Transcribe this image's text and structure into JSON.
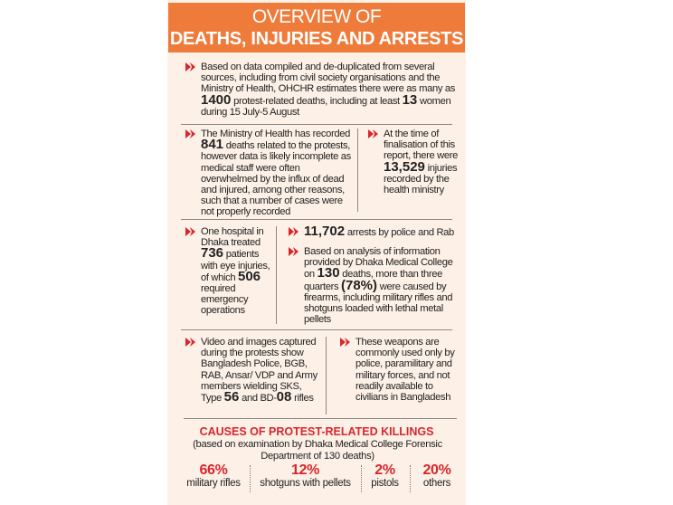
{
  "header": {
    "line1": "OVERVIEW OF",
    "line2": "DEATHS, INJURIES AND ARRESTS"
  },
  "block1": {
    "t1": "Based on data compiled and de-duplicated from several sources, including from civil society organisations and the Ministry of Health, OHCHR estimates there were as many as ",
    "n1": "1400",
    "t2": " protest-related deaths, including at least ",
    "n2": "13",
    "t3": " women during 15 July-5 August"
  },
  "block2": {
    "t1": "The Ministry of Health has recorded ",
    "n1": "841",
    "t2": " deaths related to the protests, however data is likely incomplete as medical staff were often overwhelmed by the influx of dead and injured, among other reasons, such that a number of cases were not properly recorded"
  },
  "block3": {
    "t1": "At the time of finalisation of this report, there were ",
    "n1": "13,529",
    "t2": " injuries recorded by the health ministry"
  },
  "block4": {
    "t1": "One hospital in Dhaka treated ",
    "n1": "736",
    "t2": " patients with eye injuries, of which ",
    "n2": "506",
    "t3": " required emergency operations"
  },
  "block5": {
    "n1": "11,702",
    "t1": " arrests by police and Rab"
  },
  "block6": {
    "t1": "Based on analysis of information provided by Dhaka Medical College on ",
    "n1": "130",
    "t2": " deaths, more than three quarters ",
    "n2": "(78%)",
    "t3": " were caused by firearms, including military rifles and shotguns loaded with lethal metal pellets"
  },
  "block7": {
    "t1": "Video and images captured during the protests show Bangladesh Police, BGB, RAB, Ansar/ VDP and Army members wielding SKS, Type ",
    "n1": "56",
    "t2": " and BD-",
    "n2": "08",
    "t3": " rifles"
  },
  "block8": {
    "t1": "These weapons are commonly used only by police, paramilitary and military forces, and not readily available to civilians in Bangladesh"
  },
  "causes": {
    "title": "CAUSES OF PROTEST-RELATED KILLINGS",
    "subtitle": "(based on examination by Dhaka Medical College Forensic Department of 130 deaths)",
    "stats": [
      {
        "pct": "66%",
        "label": "military rifles"
      },
      {
        "pct": "12%",
        "label": "shotguns with pellets"
      },
      {
        "pct": "2%",
        "label": "pistols"
      },
      {
        "pct": "20%",
        "label": "others"
      }
    ]
  },
  "colors": {
    "accent": "#ef7b3b",
    "red": "#d9252b",
    "background": "#fdf1e7"
  }
}
